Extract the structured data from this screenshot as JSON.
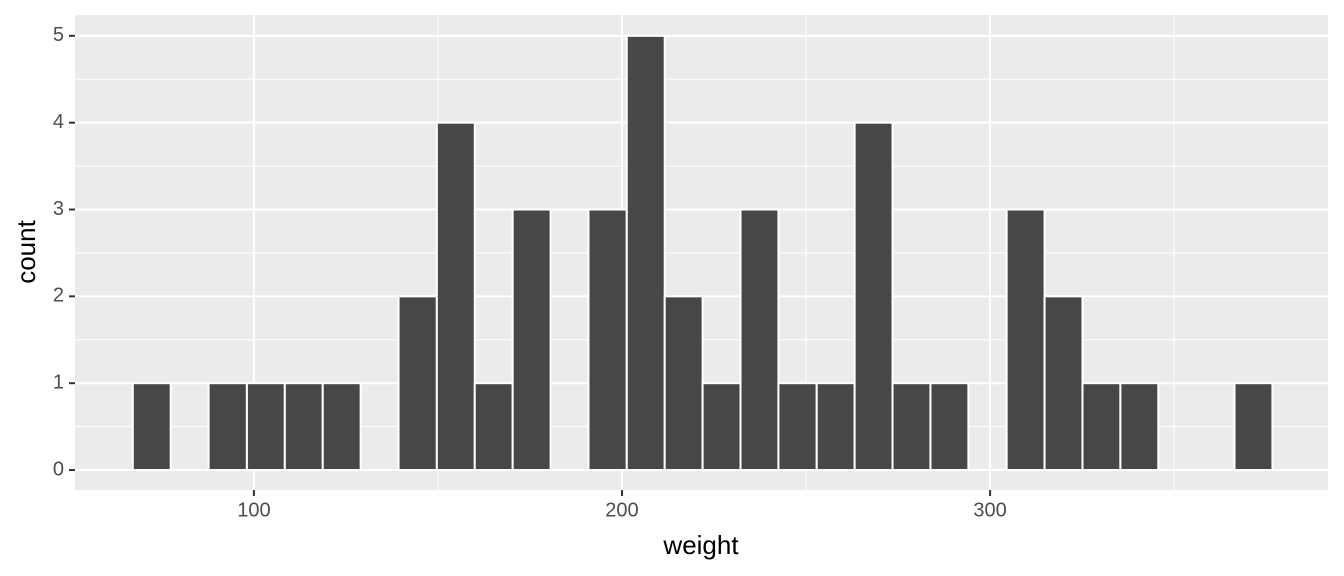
{
  "chart_data": {
    "type": "histogram",
    "x_label": "weight",
    "y_label": "count",
    "bins": [
      67.1,
      77.4,
      87.7,
      98.1,
      108.4,
      118.7,
      129.0,
      139.3,
      149.7,
      160.0,
      170.3,
      180.6,
      190.9,
      201.3,
      211.6,
      221.9,
      232.2,
      242.5,
      252.9,
      263.2,
      273.5,
      283.8,
      294.1,
      304.5,
      314.8,
      325.1,
      335.4,
      345.7,
      356.1,
      366.4,
      376.7
    ],
    "values": [
      1,
      0,
      1,
      1,
      1,
      1,
      0,
      2,
      4,
      1,
      3,
      0,
      3,
      5,
      2,
      1,
      3,
      1,
      1,
      4,
      1,
      1,
      0,
      3,
      2,
      1,
      1,
      0,
      0,
      1
    ],
    "color": "#474747",
    "xlim": [
      51.4,
      391.8
    ],
    "xticks": [
      100,
      200,
      300
    ],
    "ylim": [
      -0.23,
      5.24
    ],
    "yticks": [
      0,
      1,
      2,
      3,
      4,
      5
    ],
    "grid": true
  }
}
